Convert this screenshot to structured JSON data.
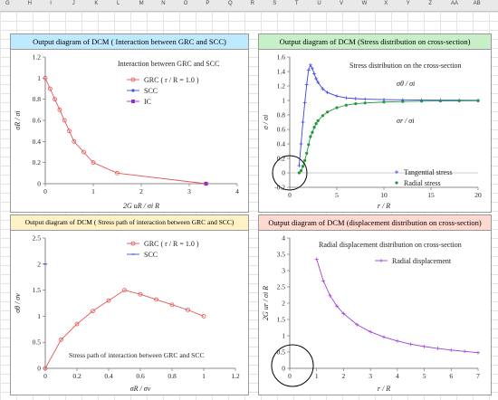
{
  "sheet": {
    "columns": [
      "G",
      "H",
      "I",
      "J",
      "K",
      "L",
      "M",
      "N",
      "O",
      "P",
      "Q",
      "R",
      "S",
      "T",
      "U",
      "V",
      "W",
      "X",
      "Y",
      "Z",
      "AA",
      "AB"
    ]
  },
  "colors": {
    "title_blue_bg": "#bfe9ff",
    "title_green_bg": "#c8f0c8",
    "title_yellow_bg": "#fff1c6",
    "title_pink_bg": "#ffd8d0",
    "grc": "#e35555",
    "scc": "#3d52e0",
    "ic": "#9b30c0",
    "tangential": "#3a44e0",
    "radial": "#1f9a3a",
    "displacement": "#a040d8"
  },
  "panels": {
    "p1": {
      "title": "Output diagram of DCM ( Interaction between GRC and SCC)",
      "inner_title": "Interaction between GRC and SCC"
    },
    "p2": {
      "title": "Output diagram of DCM (Stress distribution on cross-section)",
      "inner_title": "Stress distribution on the cross-section"
    },
    "p3": {
      "title": "Output diagram of DCM ( Stress path of interaction between GRC and SCC)",
      "inner_title": "Stress path of interaction between GRC and SCC"
    },
    "p4": {
      "title": "Output diagram of DCM (displacement distribution on cross-section)",
      "inner_title": "Radial displacement distribution on cross-section"
    }
  },
  "chart_data": [
    {
      "type": "line",
      "xlabel": "2G uR / σi R",
      "ylabel": "σR / σi",
      "xlim": [
        0,
        4
      ],
      "ylim": [
        0,
        1.2
      ],
      "xticks": [
        "0",
        "1",
        "2",
        "3",
        "4"
      ],
      "yticks": [
        "0",
        "0.2",
        "0.4",
        "0.6",
        "0.8",
        "1",
        "1.2"
      ],
      "legend_placement": "top-right",
      "series": [
        {
          "name": "GRC ( r / R = 1.0 )",
          "x": [
            0,
            0.1,
            0.2,
            0.3,
            0.4,
            0.5,
            0.6,
            0.8,
            1.0,
            1.5,
            3.35
          ],
          "y": [
            1.0,
            0.9,
            0.8,
            0.7,
            0.6,
            0.5,
            0.4,
            0.3,
            0.2,
            0.1,
            0.0
          ]
        },
        {
          "name": "SCC",
          "x": [
            3.35
          ],
          "y": [
            0.0
          ]
        },
        {
          "name": "IC",
          "x": [
            3.35
          ],
          "y": [
            0.0
          ]
        }
      ]
    },
    {
      "type": "line",
      "xlabel": "r / R",
      "ylabel": "σ / σi",
      "xlim": [
        0,
        20
      ],
      "ylim": [
        -0.2,
        1.6
      ],
      "xticks": [
        "0",
        "5",
        "10",
        "15",
        "20"
      ],
      "yticks": [
        "-0.2",
        "0",
        "0.2",
        "0.4",
        "0.6",
        "0.8",
        "1",
        "1.2",
        "1.4",
        "1.6"
      ],
      "annotations": [
        "σθ / σi",
        "σr / σi"
      ],
      "legend_placement": "bottom-right",
      "series": [
        {
          "name": "Tangential stress",
          "x": [
            1,
            1.2,
            1.4,
            1.6,
            1.8,
            2,
            2.2,
            2.4,
            2.6,
            2.8,
            3,
            3.5,
            4,
            5,
            6,
            7,
            8,
            10,
            12,
            14,
            16,
            18,
            20
          ],
          "y": [
            0.1,
            0.4,
            0.7,
            0.97,
            1.22,
            1.42,
            1.49,
            1.44,
            1.37,
            1.3,
            1.25,
            1.16,
            1.11,
            1.06,
            1.035,
            1.025,
            1.018,
            1.012,
            1.008,
            1.006,
            1.004,
            1.003,
            1.002
          ]
        },
        {
          "name": "Radial stress",
          "x": [
            1,
            1.2,
            1.4,
            1.6,
            1.8,
            2,
            2.2,
            2.4,
            2.6,
            2.8,
            3,
            3.5,
            4,
            5,
            6,
            7,
            8,
            10,
            12,
            14,
            16,
            18,
            20
          ],
          "y": [
            0.0,
            0.03,
            0.09,
            0.17,
            0.27,
            0.39,
            0.5,
            0.56,
            0.63,
            0.68,
            0.72,
            0.79,
            0.84,
            0.9,
            0.935,
            0.955,
            0.965,
            0.978,
            0.985,
            0.99,
            0.993,
            0.995,
            0.996
          ]
        }
      ]
    },
    {
      "type": "line",
      "xlabel": "σR / σv",
      "ylabel": "σθ / σv",
      "xlim": [
        0,
        1.2
      ],
      "ylim": [
        0,
        2.5
      ],
      "xticks": [
        "0",
        "0.2",
        "0.4",
        "0.6",
        "0.8",
        "1",
        "1.2"
      ],
      "yticks": [
        "0",
        "0.5",
        "1",
        "1.5",
        "2",
        "2.5"
      ],
      "legend_placement": "top-right",
      "series": [
        {
          "name": "GRC ( r / R = 1.0 )",
          "x": [
            0.0,
            0.1,
            0.2,
            0.3,
            0.4,
            0.5,
            0.6,
            0.7,
            0.8,
            0.9,
            1.0
          ],
          "y": [
            0.0,
            0.55,
            0.85,
            1.1,
            1.3,
            1.5,
            1.42,
            1.32,
            1.22,
            1.12,
            1.0
          ]
        },
        {
          "name": "SCC",
          "x": [
            0.0
          ],
          "y": [
            2.0
          ]
        }
      ]
    },
    {
      "type": "line",
      "xlabel": "r / R",
      "ylabel": "2G ur / σi R",
      "xlim": [
        0,
        7
      ],
      "ylim": [
        0,
        4
      ],
      "xticks": [
        "0",
        "1",
        "2",
        "3",
        "4",
        "5",
        "6",
        "7"
      ],
      "yticks": [
        "0",
        "0.5",
        "1",
        "1.5",
        "2",
        "2.5",
        "3",
        "3.5",
        "4"
      ],
      "legend_placement": "top-right",
      "series": [
        {
          "name": "Radial displacement",
          "x": [
            1,
            1.25,
            1.5,
            1.75,
            2,
            2.5,
            3,
            3.5,
            4,
            4.5,
            5,
            5.5,
            6,
            6.5,
            7
          ],
          "y": [
            3.35,
            2.68,
            2.23,
            1.91,
            1.68,
            1.34,
            1.12,
            0.96,
            0.84,
            0.74,
            0.67,
            0.61,
            0.56,
            0.52,
            0.48
          ]
        }
      ]
    }
  ]
}
